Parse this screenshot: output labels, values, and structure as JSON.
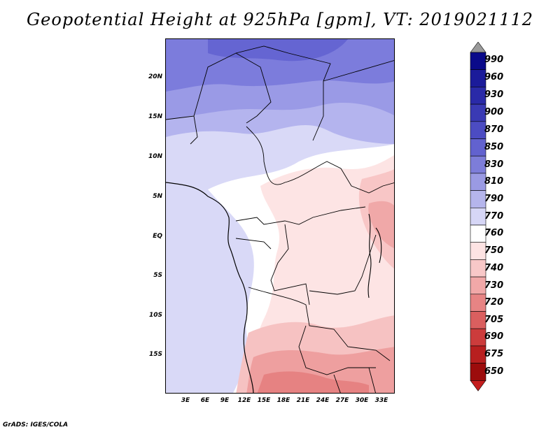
{
  "title": "Geopotential Height at 925hPa [gpm], VT: 2019021112",
  "variable": "Geopotential Height",
  "level": "925hPa",
  "units": "gpm",
  "valid_time": "2019021112",
  "map": {
    "lat_labels": [
      "20N",
      "15N",
      "10N",
      "5N",
      "EQ",
      "5S",
      "10S",
      "15S"
    ],
    "lon_labels": [
      "3E",
      "6E",
      "9E",
      "12E",
      "15E",
      "18E",
      "21E",
      "24E",
      "27E",
      "30E",
      "33E"
    ]
  },
  "colorbar": {
    "levels": [
      "990",
      "960",
      "930",
      "900",
      "870",
      "850",
      "830",
      "810",
      "790",
      "770",
      "760",
      "750",
      "740",
      "730",
      "720",
      "705",
      "690",
      "675",
      "650"
    ],
    "colors": [
      "#9a9a9a",
      "#0a0a8a",
      "#1b1b9a",
      "#2a2aa8",
      "#3a3ab4",
      "#4c4cc2",
      "#6262cf",
      "#7d7dd9",
      "#9a9ae3",
      "#b5b5ec",
      "#d6d6f6",
      "#ffffff",
      "#fde3e3",
      "#f8c8c8",
      "#f1a8a8",
      "#e78484",
      "#da5f5f",
      "#cc3c3c",
      "#b81f1f",
      "#9c0c0c",
      "#c41e1e"
    ]
  },
  "credit": "GrADS: IGES/COLA"
}
